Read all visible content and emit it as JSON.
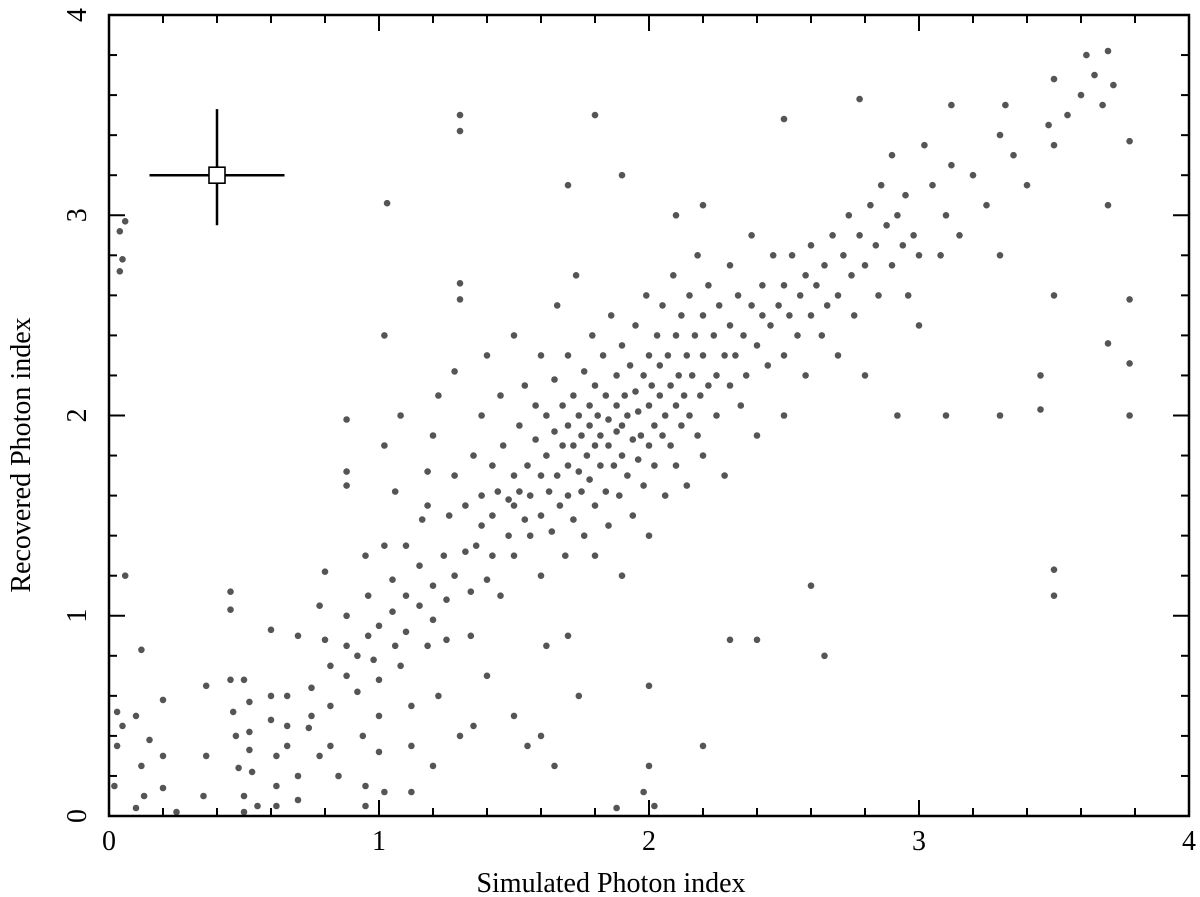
{
  "chart_data": {
    "type": "scatter",
    "title": "",
    "xlabel": "Simulated Photon index",
    "ylabel": "Recovered Photon index",
    "xlim": [
      0,
      4
    ],
    "ylim": [
      0,
      4
    ],
    "x_ticks": [
      "0",
      "1",
      "2",
      "3",
      "4"
    ],
    "y_ticks": [
      "0",
      "1",
      "2",
      "3",
      "4"
    ],
    "grid": false,
    "marker_color": "#555555",
    "axis_color": "#000000",
    "error_bar_marker": {
      "x": 0.4,
      "y": 3.2,
      "xerr": 0.25,
      "yerr_up": 0.33,
      "yerr_down": 0.25
    },
    "points_note_omitted": true,
    "points": [
      [
        0.02,
        0.15
      ],
      [
        0.03,
        0.35
      ],
      [
        0.03,
        0.52
      ],
      [
        0.05,
        0.45
      ],
      [
        0.04,
        2.72
      ],
      [
        0.05,
        2.78
      ],
      [
        0.04,
        2.92
      ],
      [
        0.06,
        2.97
      ],
      [
        0.06,
        1.2
      ],
      [
        0.12,
        0.83
      ],
      [
        0.1,
        0.5
      ],
      [
        0.12,
        0.25
      ],
      [
        0.13,
        0.1
      ],
      [
        0.1,
        0.04
      ],
      [
        0.2,
        0.58
      ],
      [
        0.2,
        0.3
      ],
      [
        0.2,
        0.14
      ],
      [
        0.15,
        0.38
      ],
      [
        0.35,
        0.1
      ],
      [
        0.36,
        0.3
      ],
      [
        0.36,
        0.65
      ],
      [
        0.45,
        1.12
      ],
      [
        0.45,
        1.03
      ],
      [
        0.45,
        0.68
      ],
      [
        0.46,
        0.52
      ],
      [
        0.47,
        0.4
      ],
      [
        0.48,
        0.24
      ],
      [
        0.5,
        0.1
      ],
      [
        0.5,
        0.02
      ],
      [
        0.5,
        0.68
      ],
      [
        0.52,
        0.57
      ],
      [
        0.52,
        0.42
      ],
      [
        0.52,
        0.33
      ],
      [
        0.53,
        0.22
      ],
      [
        0.6,
        0.93
      ],
      [
        0.6,
        0.6
      ],
      [
        0.6,
        0.48
      ],
      [
        0.62,
        0.3
      ],
      [
        0.62,
        0.15
      ],
      [
        0.62,
        0.05
      ],
      [
        0.66,
        0.6
      ],
      [
        0.66,
        0.45
      ],
      [
        0.66,
        0.35
      ],
      [
        0.7,
        0.2
      ],
      [
        0.7,
        0.08
      ],
      [
        0.7,
        0.9
      ],
      [
        0.75,
        0.64
      ],
      [
        0.75,
        0.5
      ],
      [
        0.78,
        0.3
      ],
      [
        0.78,
        1.05
      ],
      [
        0.8,
        1.22
      ],
      [
        0.8,
        0.88
      ],
      [
        0.82,
        0.75
      ],
      [
        0.82,
        0.55
      ],
      [
        0.82,
        0.35
      ],
      [
        0.85,
        0.2
      ],
      [
        0.88,
        0.85
      ],
      [
        0.88,
        0.7
      ],
      [
        0.88,
        1.0
      ],
      [
        0.88,
        1.65
      ],
      [
        0.88,
        1.72
      ],
      [
        0.88,
        1.98
      ],
      [
        0.92,
        0.8
      ],
      [
        0.92,
        0.62
      ],
      [
        0.94,
        0.4
      ],
      [
        0.95,
        0.15
      ],
      [
        0.96,
        1.1
      ],
      [
        0.96,
        0.9
      ],
      [
        0.98,
        0.78
      ],
      [
        1.0,
        0.95
      ],
      [
        1.0,
        0.68
      ],
      [
        1.0,
        0.5
      ],
      [
        1.0,
        0.32
      ],
      [
        1.02,
        0.12
      ],
      [
        1.02,
        1.35
      ],
      [
        1.02,
        1.85
      ],
      [
        1.02,
        2.4
      ],
      [
        1.03,
        3.06
      ],
      [
        1.05,
        1.02
      ],
      [
        1.05,
        1.18
      ],
      [
        1.06,
        0.85
      ],
      [
        1.06,
        1.62
      ],
      [
        1.08,
        2.0
      ],
      [
        1.08,
        0.75
      ],
      [
        1.1,
        1.35
      ],
      [
        1.1,
        1.1
      ],
      [
        1.1,
        0.92
      ],
      [
        1.12,
        0.55
      ],
      [
        1.12,
        0.35
      ],
      [
        1.12,
        0.12
      ],
      [
        1.15,
        1.25
      ],
      [
        1.15,
        1.05
      ],
      [
        1.16,
        1.48
      ],
      [
        1.18,
        0.85
      ],
      [
        1.18,
        1.72
      ],
      [
        1.2,
        1.15
      ],
      [
        1.2,
        0.98
      ],
      [
        1.2,
        1.9
      ],
      [
        1.22,
        0.6
      ],
      [
        1.22,
        2.1
      ],
      [
        1.24,
        1.3
      ],
      [
        1.25,
        1.08
      ],
      [
        1.25,
        0.88
      ],
      [
        1.26,
        1.5
      ],
      [
        1.28,
        1.2
      ],
      [
        1.28,
        1.7
      ],
      [
        1.28,
        2.22
      ],
      [
        1.3,
        0.4
      ],
      [
        1.3,
        2.58
      ],
      [
        1.3,
        2.66
      ],
      [
        1.3,
        3.42
      ],
      [
        1.3,
        3.5
      ],
      [
        1.32,
        1.55
      ],
      [
        1.32,
        1.32
      ],
      [
        1.34,
        1.12
      ],
      [
        1.34,
        0.9
      ],
      [
        1.35,
        1.8
      ],
      [
        1.36,
        1.35
      ],
      [
        1.38,
        1.6
      ],
      [
        1.38,
        1.45
      ],
      [
        1.38,
        2.0
      ],
      [
        1.4,
        1.18
      ],
      [
        1.4,
        0.7
      ],
      [
        1.4,
        2.3
      ],
      [
        1.42,
        1.5
      ],
      [
        1.42,
        1.3
      ],
      [
        1.42,
        1.75
      ],
      [
        1.44,
        1.62
      ],
      [
        1.45,
        1.1
      ],
      [
        1.45,
        2.1
      ],
      [
        1.46,
        1.85
      ],
      [
        1.48,
        1.4
      ],
      [
        1.48,
        1.58
      ],
      [
        1.5,
        1.7
      ],
      [
        1.5,
        1.55
      ],
      [
        1.5,
        1.3
      ],
      [
        1.5,
        2.4
      ],
      [
        1.5,
        0.5
      ],
      [
        1.52,
        1.95
      ],
      [
        1.52,
        1.62
      ],
      [
        1.54,
        1.48
      ],
      [
        1.54,
        2.15
      ],
      [
        1.55,
        1.75
      ],
      [
        1.56,
        1.6
      ],
      [
        1.56,
        1.4
      ],
      [
        1.58,
        1.88
      ],
      [
        1.58,
        2.05
      ],
      [
        1.6,
        1.5
      ],
      [
        1.6,
        1.7
      ],
      [
        1.6,
        2.3
      ],
      [
        1.6,
        1.2
      ],
      [
        1.6,
        0.4
      ],
      [
        1.62,
        2.0
      ],
      [
        1.62,
        1.8
      ],
      [
        1.63,
        1.62
      ],
      [
        1.64,
        1.42
      ],
      [
        1.65,
        2.18
      ],
      [
        1.65,
        1.92
      ],
      [
        1.66,
        1.7
      ],
      [
        1.66,
        2.55
      ],
      [
        1.67,
        1.55
      ],
      [
        1.68,
        1.85
      ],
      [
        1.68,
        2.05
      ],
      [
        1.69,
        1.3
      ],
      [
        1.7,
        1.95
      ],
      [
        1.7,
        1.75
      ],
      [
        1.7,
        2.3
      ],
      [
        1.7,
        1.6
      ],
      [
        1.7,
        0.9
      ],
      [
        1.7,
        3.15
      ],
      [
        1.72,
        2.1
      ],
      [
        1.72,
        1.85
      ],
      [
        1.72,
        1.48
      ],
      [
        1.73,
        2.7
      ],
      [
        1.74,
        1.72
      ],
      [
        1.74,
        2.0
      ],
      [
        1.75,
        1.9
      ],
      [
        1.75,
        1.62
      ],
      [
        1.76,
        2.22
      ],
      [
        1.76,
        1.4
      ],
      [
        1.77,
        1.8
      ],
      [
        1.78,
        2.05
      ],
      [
        1.78,
        1.95
      ],
      [
        1.78,
        1.68
      ],
      [
        1.79,
        2.4
      ],
      [
        1.8,
        1.85
      ],
      [
        1.8,
        1.55
      ],
      [
        1.8,
        2.15
      ],
      [
        1.8,
        1.3
      ],
      [
        1.8,
        3.5
      ],
      [
        1.81,
        2.0
      ],
      [
        1.82,
        1.75
      ],
      [
        1.82,
        1.9
      ],
      [
        1.83,
        2.3
      ],
      [
        1.84,
        1.62
      ],
      [
        1.84,
        2.1
      ],
      [
        1.85,
        1.85
      ],
      [
        1.85,
        1.98
      ],
      [
        1.85,
        1.45
      ],
      [
        1.86,
        2.5
      ],
      [
        1.87,
        1.75
      ],
      [
        1.88,
        2.05
      ],
      [
        1.88,
        1.92
      ],
      [
        1.88,
        2.2
      ],
      [
        1.89,
        1.6
      ],
      [
        1.9,
        1.8
      ],
      [
        1.9,
        2.35
      ],
      [
        1.9,
        1.95
      ],
      [
        1.9,
        1.2
      ],
      [
        1.9,
        3.2
      ],
      [
        1.91,
        2.1
      ],
      [
        1.92,
        1.7
      ],
      [
        1.92,
        2.0
      ],
      [
        1.93,
        2.25
      ],
      [
        1.94,
        1.88
      ],
      [
        1.94,
        1.5
      ],
      [
        1.95,
        2.12
      ],
      [
        1.95,
        2.45
      ],
      [
        1.96,
        1.78
      ],
      [
        1.96,
        2.02
      ],
      [
        1.97,
        1.9
      ],
      [
        1.98,
        2.2
      ],
      [
        1.98,
        1.65
      ],
      [
        1.99,
        2.6
      ],
      [
        2.0,
        2.05
      ],
      [
        2.0,
        1.85
      ],
      [
        2.0,
        2.3
      ],
      [
        2.0,
        1.4
      ],
      [
        2.0,
        0.65
      ],
      [
        2.0,
        0.25
      ],
      [
        2.01,
        2.15
      ],
      [
        2.02,
        1.95
      ],
      [
        2.02,
        1.75
      ],
      [
        2.03,
        2.4
      ],
      [
        2.04,
        2.1
      ],
      [
        2.04,
        2.25
      ],
      [
        2.05,
        1.9
      ],
      [
        2.05,
        2.55
      ],
      [
        2.06,
        2.0
      ],
      [
        2.06,
        1.6
      ],
      [
        2.07,
        2.3
      ],
      [
        2.08,
        2.15
      ],
      [
        2.08,
        1.85
      ],
      [
        2.09,
        2.7
      ],
      [
        2.1,
        2.05
      ],
      [
        2.1,
        2.4
      ],
      [
        2.1,
        1.75
      ],
      [
        2.1,
        3.0
      ],
      [
        2.11,
        2.2
      ],
      [
        2.12,
        1.95
      ],
      [
        2.12,
        2.5
      ],
      [
        2.13,
        2.1
      ],
      [
        2.14,
        2.3
      ],
      [
        2.14,
        1.65
      ],
      [
        2.15,
        2.0
      ],
      [
        2.15,
        2.6
      ],
      [
        2.16,
        2.2
      ],
      [
        2.17,
        2.4
      ],
      [
        2.18,
        1.9
      ],
      [
        2.18,
        2.8
      ],
      [
        2.19,
        2.1
      ],
      [
        2.2,
        2.3
      ],
      [
        2.2,
        2.5
      ],
      [
        2.2,
        1.8
      ],
      [
        2.2,
        3.05
      ],
      [
        2.22,
        2.15
      ],
      [
        2.22,
        2.65
      ],
      [
        2.24,
        2.4
      ],
      [
        2.25,
        2.0
      ],
      [
        2.25,
        2.2
      ],
      [
        2.26,
        2.55
      ],
      [
        2.28,
        2.3
      ],
      [
        2.28,
        1.7
      ],
      [
        2.3,
        2.45
      ],
      [
        2.3,
        2.15
      ],
      [
        2.3,
        2.75
      ],
      [
        2.32,
        2.3
      ],
      [
        2.33,
        2.6
      ],
      [
        2.34,
        2.05
      ],
      [
        2.35,
        2.4
      ],
      [
        2.36,
        2.2
      ],
      [
        2.38,
        2.55
      ],
      [
        2.38,
        2.9
      ],
      [
        2.4,
        2.35
      ],
      [
        2.4,
        1.9
      ],
      [
        2.4,
        0.88
      ],
      [
        2.42,
        2.5
      ],
      [
        2.42,
        2.65
      ],
      [
        2.44,
        2.25
      ],
      [
        2.45,
        2.45
      ],
      [
        2.46,
        2.8
      ],
      [
        2.48,
        2.55
      ],
      [
        2.5,
        2.3
      ],
      [
        2.5,
        2.65
      ],
      [
        2.5,
        2.0
      ],
      [
        2.5,
        3.48
      ],
      [
        2.52,
        2.5
      ],
      [
        2.53,
        2.8
      ],
      [
        2.55,
        2.4
      ],
      [
        2.56,
        2.6
      ],
      [
        2.58,
        2.7
      ],
      [
        2.58,
        2.2
      ],
      [
        2.6,
        2.5
      ],
      [
        2.6,
        2.85
      ],
      [
        2.6,
        1.15
      ],
      [
        2.62,
        2.65
      ],
      [
        2.64,
        2.4
      ],
      [
        2.65,
        2.75
      ],
      [
        2.65,
        0.8
      ],
      [
        2.66,
        2.55
      ],
      [
        2.68,
        2.9
      ],
      [
        2.7,
        2.6
      ],
      [
        2.7,
        2.3
      ],
      [
        2.72,
        2.8
      ],
      [
        2.74,
        3.0
      ],
      [
        2.75,
        2.7
      ],
      [
        2.76,
        2.5
      ],
      [
        2.78,
        2.9
      ],
      [
        2.78,
        3.58
      ],
      [
        2.8,
        2.75
      ],
      [
        2.8,
        2.2
      ],
      [
        2.82,
        3.05
      ],
      [
        2.84,
        2.85
      ],
      [
        2.85,
        2.6
      ],
      [
        2.86,
        3.15
      ],
      [
        2.88,
        2.95
      ],
      [
        2.9,
        2.75
      ],
      [
        2.9,
        3.3
      ],
      [
        2.92,
        3.0
      ],
      [
        2.92,
        2.0
      ],
      [
        2.94,
        2.85
      ],
      [
        2.95,
        3.1
      ],
      [
        2.96,
        2.6
      ],
      [
        2.98,
        2.9
      ],
      [
        3.0,
        2.8
      ],
      [
        3.0,
        2.45
      ],
      [
        3.02,
        3.35
      ],
      [
        3.05,
        3.15
      ],
      [
        3.08,
        2.8
      ],
      [
        3.1,
        3.0
      ],
      [
        3.1,
        2.0
      ],
      [
        3.12,
        3.25
      ],
      [
        3.12,
        3.55
      ],
      [
        3.15,
        2.9
      ],
      [
        3.2,
        3.2
      ],
      [
        3.25,
        3.05
      ],
      [
        3.3,
        3.4
      ],
      [
        3.3,
        2.8
      ],
      [
        3.3,
        2.0
      ],
      [
        3.32,
        3.55
      ],
      [
        3.35,
        3.3
      ],
      [
        3.4,
        3.15
      ],
      [
        3.45,
        2.2
      ],
      [
        3.45,
        2.03
      ],
      [
        3.48,
        3.45
      ],
      [
        3.5,
        3.68
      ],
      [
        3.5,
        3.35
      ],
      [
        3.5,
        1.23
      ],
      [
        3.5,
        1.1
      ],
      [
        3.5,
        2.6
      ],
      [
        3.55,
        3.5
      ],
      [
        3.6,
        3.6
      ],
      [
        3.62,
        3.8
      ],
      [
        3.65,
        3.7
      ],
      [
        3.68,
        3.55
      ],
      [
        3.7,
        3.82
      ],
      [
        3.7,
        3.05
      ],
      [
        3.7,
        2.36
      ],
      [
        3.72,
        3.65
      ],
      [
        3.78,
        3.37
      ],
      [
        3.78,
        2.58
      ],
      [
        3.78,
        2.26
      ],
      [
        3.78,
        2.0
      ],
      [
        0.74,
        0.44
      ],
      [
        0.95,
        1.3
      ],
      [
        1.18,
        1.55
      ],
      [
        1.62,
        0.85
      ],
      [
        1.74,
        0.6
      ],
      [
        2.3,
        0.88
      ],
      [
        2.2,
        0.35
      ],
      [
        1.98,
        0.12
      ],
      [
        2.02,
        0.05
      ],
      [
        1.88,
        0.04
      ],
      [
        1.2,
        0.25
      ],
      [
        0.95,
        0.05
      ],
      [
        0.55,
        0.05
      ],
      [
        0.25,
        0.02
      ],
      [
        1.55,
        0.35
      ],
      [
        1.65,
        0.25
      ],
      [
        1.35,
        0.45
      ]
    ]
  }
}
